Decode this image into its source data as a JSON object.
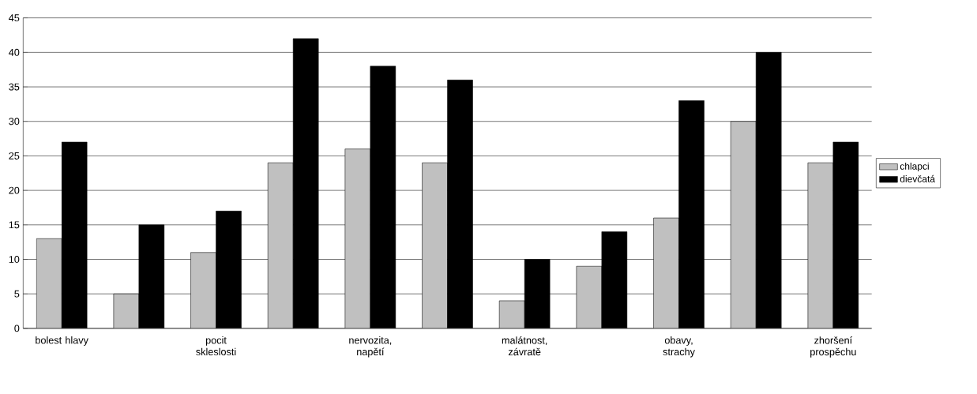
{
  "chart_data": {
    "type": "bar",
    "categories": [
      "bolest hlavy",
      null,
      "pocit skleslosti",
      null,
      "nervozita, napětí",
      null,
      "malátnost, závratě",
      null,
      "obavy, strachy",
      null,
      "zhoršení prospěchu"
    ],
    "series": [
      {
        "name": "chlapci",
        "color": "#c0c0c0",
        "values": [
          13,
          5,
          11,
          24,
          26,
          24,
          4,
          9,
          16,
          30,
          24
        ]
      },
      {
        "name": "dievčatá",
        "color": "#000000",
        "values": [
          27,
          15,
          17,
          42,
          38,
          36,
          10,
          14,
          33,
          40,
          27
        ]
      }
    ],
    "ylim": [
      0,
      45
    ],
    "yticks": [
      0,
      5,
      10,
      15,
      20,
      25,
      30,
      35,
      40,
      45
    ],
    "grid": "y",
    "legend": "right"
  }
}
